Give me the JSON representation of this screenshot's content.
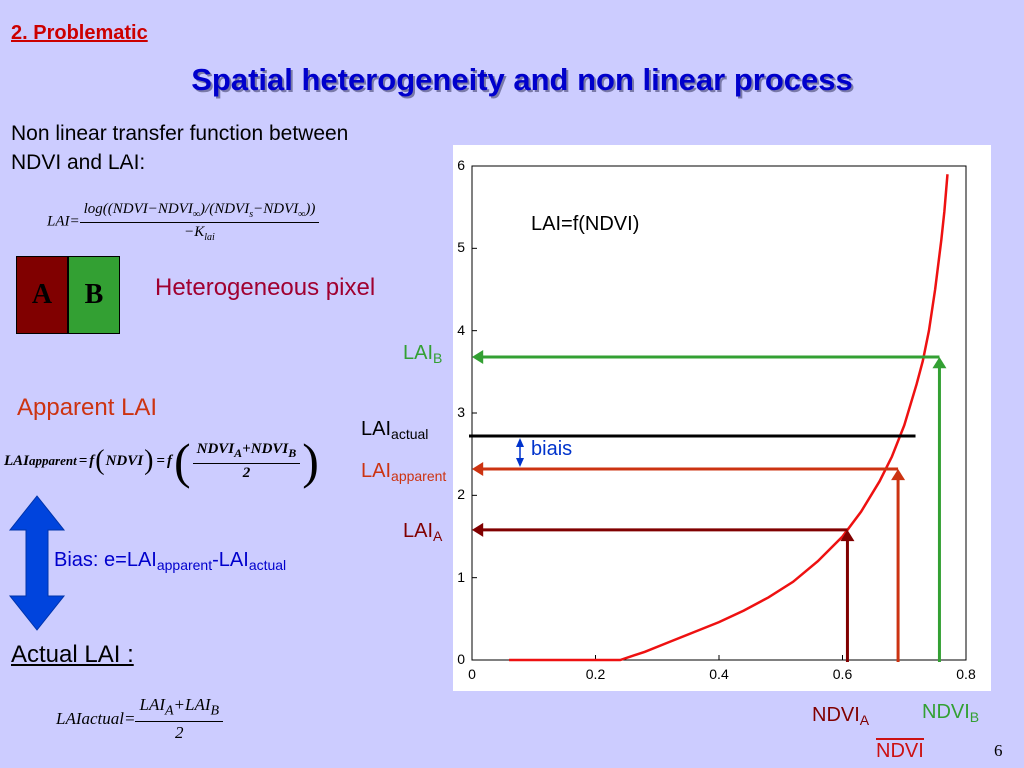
{
  "header": {
    "section": "2. Problematic",
    "title": "Spatial heterogeneity and non linear process"
  },
  "intro": {
    "line1": "Non linear transfer function between",
    "line2": "NDVI and LAI:"
  },
  "formula_main": {
    "lhs": "LAI=",
    "num_a": "log((NDVI−NDVI",
    "num_inf1": "∞",
    "num_b": ")/(NDVI",
    "num_s": "s",
    "num_c": "−NDVI",
    "num_inf2": "∞",
    "num_d": "))",
    "den_a": "−K",
    "den_sub": "lai"
  },
  "pixel": {
    "a": "A",
    "b": "B",
    "label": "Heterogeneous pixel",
    "color_a": "#800000",
    "color_b": "#33a033"
  },
  "apparent": {
    "title": "Apparent LAI",
    "f_lai": "LAI",
    "f_lai_sub": "apparent",
    "f_eq1": "=",
    "f_f1": "f",
    "f_ndvi": "NDVI",
    "f_eq2": "=",
    "f_f2": "f",
    "f_num1": "NDVI",
    "f_sub_a": "A",
    "f_plus": "+",
    "f_num2": "NDVI",
    "f_sub_b": "B",
    "f_den": "2"
  },
  "bias": {
    "prefix": "Bias: e=LAI",
    "sub1": "apparent",
    "mid": "-LAI",
    "sub2": "actual"
  },
  "actual": {
    "title": "Actual LAI :",
    "f_lai": "LAI",
    "f_sub": "actual",
    "f_eq": "=",
    "f_num_a": "LAI",
    "f_sub_a": "A",
    "f_plus": "+",
    "f_num_b": "LAI",
    "f_sub_b": "B",
    "f_den": "2"
  },
  "chart_data": {
    "type": "line",
    "title": "LAI=f(NDVI)",
    "xlabel": "NDVI",
    "ylabel": "",
    "xlim": [
      0,
      0.8
    ],
    "ylim": [
      0,
      6
    ],
    "xticks": [
      "0",
      "0.2",
      "0.4",
      "0.6",
      "0.8"
    ],
    "yticks": [
      "0",
      "1",
      "2",
      "3",
      "4",
      "5",
      "6"
    ],
    "series": [
      {
        "color": "#ee1111",
        "x": [
          0.06,
          0.24,
          0.28,
          0.32,
          0.36,
          0.4,
          0.44,
          0.48,
          0.52,
          0.56,
          0.6,
          0.63,
          0.66,
          0.68,
          0.7,
          0.72,
          0.73,
          0.74,
          0.75,
          0.76,
          0.765,
          0.77
        ],
        "y": [
          0,
          0,
          0.1,
          0.22,
          0.34,
          0.46,
          0.6,
          0.76,
          0.95,
          1.2,
          1.5,
          1.8,
          2.17,
          2.47,
          2.85,
          3.35,
          3.63,
          4.0,
          4.5,
          5.1,
          5.45,
          5.9
        ]
      }
    ],
    "annotations": {
      "lai_b": {
        "label": "LAI",
        "sub": "B",
        "ndvi": 0.757,
        "lai": 3.68,
        "color": "#33a033"
      },
      "lai_actual": {
        "label": "LAI",
        "sub": "actual",
        "ndvi": 0.715,
        "lai": 2.72,
        "color": "#000000"
      },
      "lai_apparent": {
        "label": "LAI",
        "sub": "apparent",
        "ndvi": 0.69,
        "lai": 2.32,
        "color": "#cc3311"
      },
      "lai_a": {
        "label": "LAI",
        "sub": "A",
        "ndvi": 0.608,
        "lai": 1.58,
        "color": "#800000"
      },
      "biais": {
        "label": "biais",
        "color": "#0033cc"
      },
      "ndvi_a": {
        "label": "NDVI",
        "sub": "A"
      },
      "ndvi_b": {
        "label": "NDVI",
        "sub": "B"
      }
    }
  },
  "page": {
    "number": "6"
  }
}
